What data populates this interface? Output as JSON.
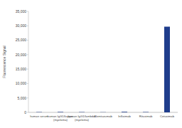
{
  "chart_data": {
    "type": "bar",
    "y_label": "Fluorescence Signal",
    "categories": [
      "human serum",
      "human IgG1/kappa (myeloma)",
      "human IgG1/lambda (myeloma)",
      "Alemtuzumab",
      "Infliximab",
      "Rituximab",
      "Cetuximab"
    ],
    "values": [
      100,
      150,
      100,
      60,
      200,
      120,
      29700
    ],
    "color": "#1f3d8c",
    "ylim": [
      0,
      35000
    ],
    "yticks": [
      0,
      {
        "value": 5000,
        "label": "5,000"
      },
      {
        "value": 10000,
        "label": "10,000"
      },
      {
        "value": 15000,
        "label": "15,000"
      },
      {
        "value": 20000,
        "label": "20,000"
      },
      {
        "value": 25000,
        "label": "25,000"
      },
      {
        "value": 30000,
        "label": "30,000"
      },
      {
        "value": 35000,
        "label": "35,000"
      }
    ],
    "grid": false
  }
}
